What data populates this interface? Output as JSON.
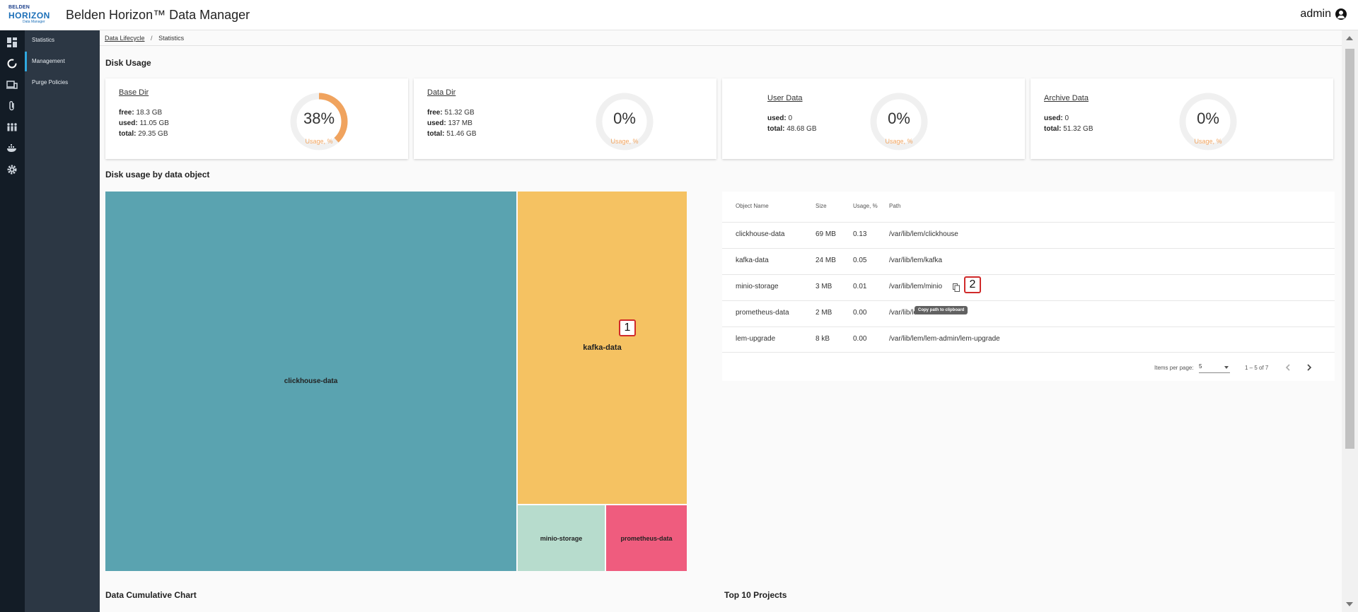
{
  "app": {
    "logo_line1": "BELDEN",
    "logo_line2": "HORIZON",
    "logo_line3": "Data Manager",
    "title": "Belden Horizon™ Data Manager",
    "user": "admin"
  },
  "rail": {
    "icons": [
      "dashboard-icon",
      "lifecycle-icon",
      "devices-icon",
      "attachment-icon",
      "users-icon",
      "docker-icon",
      "settings-icon"
    ]
  },
  "subnav": {
    "items": [
      {
        "label": "Statistics"
      },
      {
        "label": "Management"
      },
      {
        "label": "Purge Policies"
      }
    ],
    "active_index": 1
  },
  "breadcrumb": {
    "parent": "Data Lifecycle",
    "separator": "/",
    "current": "Statistics"
  },
  "disk_usage": {
    "title": "Disk Usage",
    "cards": [
      {
        "title": "Base Dir",
        "free_label": "free:",
        "free": "18.3 GB",
        "used_label": "used:",
        "used": "11.05 GB",
        "total_label": "total:",
        "total": "29.35 GB",
        "pct": "38%",
        "pct_value": 38,
        "usage_label": "Usage, %"
      },
      {
        "title": "Data Dir",
        "free_label": "free:",
        "free": "51.32 GB",
        "used_label": "used:",
        "used": "137 MB",
        "total_label": "total:",
        "total": "51.46 GB",
        "pct": "0%",
        "pct_value": 0,
        "usage_label": "Usage, %"
      },
      {
        "title": "User Data",
        "used_label": "used:",
        "used": "0",
        "total_label": "total:",
        "total": "48.68 GB",
        "pct": "0%",
        "pct_value": 0,
        "usage_label": "Usage, %"
      },
      {
        "title": "Archive Data",
        "used_label": "used:",
        "used": "0",
        "total_label": "total:",
        "total": "51.32 GB",
        "pct": "0%",
        "pct_value": 0,
        "usage_label": "Usage, %"
      }
    ],
    "accent": "#f0a35e",
    "ring_bg": "#f0f0f0"
  },
  "by_object": {
    "title": "Disk usage by data object",
    "treemap": [
      {
        "name": "clickhouse-data",
        "color": "#5aa3b0"
      },
      {
        "name": "kafka-data",
        "color": "#f5c262"
      },
      {
        "name": "minio-storage",
        "color": "#b7dccd"
      },
      {
        "name": "prometheus-data",
        "color": "#ef5c7e"
      }
    ],
    "table": {
      "headers": [
        "Object Name",
        "Size",
        "Usage, %",
        "Path"
      ],
      "rows": [
        {
          "name": "clickhouse-data",
          "size": "69 MB",
          "usage": "0.13",
          "path": "/var/lib/lem/clickhouse"
        },
        {
          "name": "kafka-data",
          "size": "24 MB",
          "usage": "0.05",
          "path": "/var/lib/lem/kafka"
        },
        {
          "name": "minio-storage",
          "size": "3 MB",
          "usage": "0.01",
          "path": "/var/lib/lem/minio"
        },
        {
          "name": "prometheus-data",
          "size": "2 MB",
          "usage": "0.00",
          "path": "/var/lib/lem"
        },
        {
          "name": "lem-upgrade",
          "size": "8 kB",
          "usage": "0.00",
          "path": "/var/lib/lem/lem-admin/lem-upgrade"
        }
      ],
      "tooltip": "Copy path to clipboard",
      "items_per_page_label": "Items per page:",
      "items_per_page": "5",
      "range": "1 – 5 of 7"
    }
  },
  "annotations": {
    "badge1": "1",
    "badge2": "2"
  },
  "bottom": {
    "cumulative_title": "Data Cumulative Chart",
    "top_projects_title": "Top 10 Projects"
  }
}
